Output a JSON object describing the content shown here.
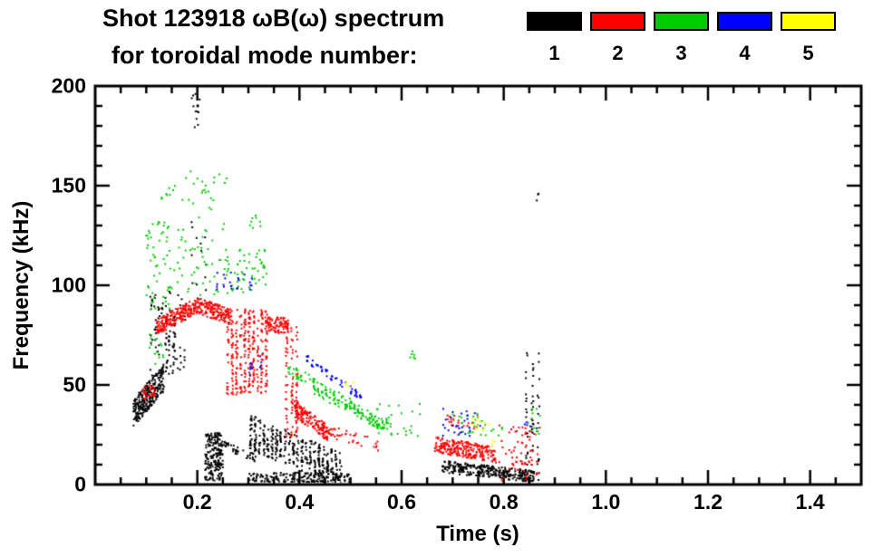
{
  "header": {
    "title_line1": "Shot 123918 ωB(ω) spectrum",
    "title_line2": "for toroidal mode number:"
  },
  "chart_data": {
    "type": "scatter",
    "title": "Shot 123918 ωB(ω) spectrum for toroidal mode number:",
    "xlabel": "Time (s)",
    "ylabel": "Frequency (kHz)",
    "xlim": [
      0,
      1.5
    ],
    "ylim": [
      0,
      200
    ],
    "xticks": [
      0.2,
      0.4,
      0.6,
      0.8,
      1.0,
      1.2,
      1.4
    ],
    "xtick_labels": [
      "0.2",
      "0.4",
      "0.6",
      "0.8",
      "1.0",
      "1.2",
      "1.4"
    ],
    "yticks": [
      0,
      50,
      100,
      150,
      200
    ],
    "ytick_labels": [
      "0",
      "50",
      "100",
      "150",
      "200"
    ],
    "x_minor_step": 0.05,
    "y_minor_step": 10,
    "grid": false,
    "background": "#ffffff",
    "frame_color": "#000000",
    "legend_position": "top-right",
    "legend": [
      {
        "label": "1",
        "name": "n=1",
        "color": "#000000"
      },
      {
        "label": "2",
        "name": "n=2",
        "color": "#ff0000"
      },
      {
        "label": "3",
        "name": "n=3",
        "color": "#00cc00"
      },
      {
        "label": "4",
        "name": "n=4",
        "color": "#0000ff"
      },
      {
        "label": "5",
        "name": "n=5",
        "color": "#ffff00"
      }
    ],
    "series": [
      {
        "name": "n=1",
        "color": "#000000",
        "clusters": [
          {
            "t0": 0.075,
            "t1": 0.135,
            "f0": 36,
            "f1": 54,
            "mode": "line",
            "j": 7,
            "n": 260
          },
          {
            "t0": 0.11,
            "t1": 0.175,
            "f0": 52,
            "f1": 97,
            "mode": "box",
            "n": 80,
            "cols": 10
          },
          {
            "t0": 0.14,
            "t1": 0.155,
            "f0": 60,
            "f1": 90,
            "mode": "box",
            "n": 30,
            "cols": 2
          },
          {
            "t0": 0.185,
            "t1": 0.205,
            "f0": 175,
            "f1": 196,
            "mode": "box",
            "n": 14
          },
          {
            "t0": 0.19,
            "t1": 0.215,
            "f0": 97,
            "f1": 133,
            "mode": "box",
            "n": 12,
            "cols": 4
          },
          {
            "t0": 0.215,
            "t1": 0.25,
            "f0": 2,
            "f1": 26,
            "mode": "box",
            "n": 200
          },
          {
            "t0": 0.25,
            "t1": 0.315,
            "f0": 20,
            "f1": 13,
            "mode": "line",
            "j": 2,
            "n": 40
          },
          {
            "t0": 0.305,
            "t1": 0.48,
            "f0": 26,
            "f1": 7,
            "mode": "line",
            "j": 9,
            "n": 380,
            "cols": 22
          },
          {
            "t0": 0.3,
            "t1": 0.5,
            "f0": 1,
            "f1": 6,
            "mode": "box",
            "n": 170
          },
          {
            "t0": 0.68,
            "t1": 0.86,
            "f0": 9,
            "f1": 4,
            "mode": "line",
            "j": 3,
            "n": 300
          },
          {
            "t0": 0.845,
            "t1": 0.868,
            "f0": 1,
            "f1": 66,
            "mode": "box",
            "n": 60,
            "cols": 3
          },
          {
            "t0": 0.862,
            "t1": 0.872,
            "f0": 140,
            "f1": 146,
            "mode": "box",
            "n": 3
          }
        ]
      },
      {
        "name": "n=2",
        "color": "#ff0000",
        "clusters": [
          {
            "t0": 0.093,
            "t1": 0.118,
            "f0": 43,
            "f1": 50,
            "mode": "box",
            "n": 30
          },
          {
            "t0": 0.12,
            "t1": 0.2,
            "f0": 79,
            "f1": 90,
            "mode": "line",
            "j": 4,
            "n": 200
          },
          {
            "t0": 0.2,
            "t1": 0.265,
            "f0": 90,
            "f1": 84,
            "mode": "line",
            "j": 4,
            "n": 160
          },
          {
            "t0": 0.26,
            "t1": 0.335,
            "f0": 45,
            "f1": 88,
            "mode": "box",
            "n": 300,
            "cols": 10
          },
          {
            "t0": 0.335,
            "t1": 0.378,
            "f0": 76,
            "f1": 84,
            "mode": "box",
            "n": 90
          },
          {
            "t0": 0.375,
            "t1": 0.395,
            "f0": 24,
            "f1": 80,
            "mode": "box",
            "n": 90,
            "cols": 3
          },
          {
            "t0": 0.39,
            "t1": 0.455,
            "f0": 38,
            "f1": 26,
            "mode": "line",
            "j": 4,
            "n": 150
          },
          {
            "t0": 0.455,
            "t1": 0.56,
            "f0": 27,
            "f1": 19,
            "mode": "line",
            "j": 3,
            "n": 40
          },
          {
            "t0": 0.665,
            "t1": 0.785,
            "f0": 20,
            "f1": 15,
            "mode": "line",
            "j": 4,
            "n": 240
          },
          {
            "t0": 0.69,
            "t1": 0.75,
            "f0": 28,
            "f1": 35,
            "mode": "box",
            "n": 20
          },
          {
            "t0": 0.79,
            "t1": 0.872,
            "f0": 2,
            "f1": 30,
            "mode": "box",
            "n": 70
          }
        ]
      },
      {
        "name": "n=3",
        "color": "#00cc00",
        "clusters": [
          {
            "t0": 0.1,
            "t1": 0.165,
            "f0": 88,
            "f1": 132,
            "mode": "box",
            "n": 60
          },
          {
            "t0": 0.105,
            "t1": 0.135,
            "f0": 60,
            "f1": 78,
            "mode": "box",
            "n": 14
          },
          {
            "t0": 0.12,
            "t1": 0.16,
            "f0": 140,
            "f1": 152,
            "mode": "box",
            "n": 8
          },
          {
            "t0": 0.165,
            "t1": 0.26,
            "f0": 95,
            "f1": 158,
            "mode": "box",
            "n": 70
          },
          {
            "t0": 0.25,
            "t1": 0.345,
            "f0": 96,
            "f1": 118,
            "mode": "box",
            "n": 55
          },
          {
            "t0": 0.3,
            "t1": 0.325,
            "f0": 128,
            "f1": 135,
            "mode": "box",
            "n": 8
          },
          {
            "t0": 0.38,
            "t1": 0.58,
            "f0": 58,
            "f1": 28,
            "mode": "line",
            "j": 3,
            "n": 130,
            "cols": 26
          },
          {
            "t0": 0.43,
            "t1": 0.56,
            "f0": 47,
            "f1": 29,
            "mode": "line",
            "j": 2,
            "n": 60,
            "cols": 18
          },
          {
            "t0": 0.55,
            "t1": 0.64,
            "f0": 24,
            "f1": 42,
            "mode": "box",
            "n": 25
          },
          {
            "t0": 0.615,
            "t1": 0.63,
            "f0": 63,
            "f1": 67,
            "mode": "box",
            "n": 6
          },
          {
            "t0": 0.7,
            "t1": 0.8,
            "f0": 24,
            "f1": 36,
            "mode": "box",
            "n": 30
          },
          {
            "t0": 0.845,
            "t1": 0.872,
            "f0": 24,
            "f1": 40,
            "mode": "box",
            "n": 12
          }
        ]
      },
      {
        "name": "n=4",
        "color": "#0000ff",
        "clusters": [
          {
            "t0": 0.24,
            "t1": 0.305,
            "f0": 97,
            "f1": 107,
            "mode": "box",
            "n": 22,
            "cols": 6
          },
          {
            "t0": 0.305,
            "t1": 0.325,
            "f0": 55,
            "f1": 66,
            "mode": "box",
            "n": 10,
            "cols": 2
          },
          {
            "t0": 0.415,
            "t1": 0.52,
            "f0": 63,
            "f1": 44,
            "mode": "line",
            "j": 2,
            "n": 55,
            "cols": 12
          },
          {
            "t0": 0.675,
            "t1": 0.76,
            "f0": 24,
            "f1": 38,
            "mode": "box",
            "n": 28
          },
          {
            "t0": 0.84,
            "t1": 0.865,
            "f0": 26,
            "f1": 34,
            "mode": "box",
            "n": 6
          }
        ]
      },
      {
        "name": "n=5",
        "color": "#ffff00",
        "clusters": [
          {
            "t0": 0.735,
            "t1": 0.775,
            "f0": 27,
            "f1": 33,
            "mode": "box",
            "n": 10
          },
          {
            "t0": 0.49,
            "t1": 0.515,
            "f0": 48,
            "f1": 53,
            "mode": "box",
            "n": 4
          },
          {
            "t0": 0.775,
            "t1": 0.79,
            "f0": 18,
            "f1": 24,
            "mode": "box",
            "n": 4
          }
        ]
      }
    ]
  }
}
